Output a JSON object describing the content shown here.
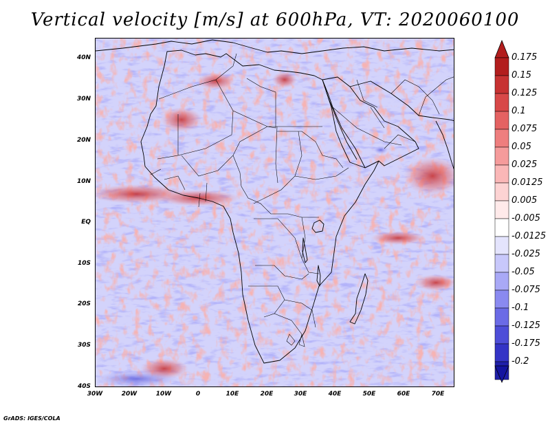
{
  "title": "Vertical velocity [m/s] at 600hPa, VT: 2020060100",
  "credit": "GrADS: IGES/COLA",
  "map": {
    "variable": "Vertical velocity",
    "units": "m/s",
    "level": "600hPa",
    "valid_time": "2020060100",
    "lon_range": [
      -30,
      75
    ],
    "lat_range": [
      -40,
      45
    ],
    "lat_ticks": [
      {
        "value": 40,
        "label": "40N"
      },
      {
        "value": 30,
        "label": "30N"
      },
      {
        "value": 20,
        "label": "20N"
      },
      {
        "value": 10,
        "label": "10N"
      },
      {
        "value": 0,
        "label": "EQ"
      },
      {
        "value": -10,
        "label": "10S"
      },
      {
        "value": -20,
        "label": "20S"
      },
      {
        "value": -30,
        "label": "30S"
      },
      {
        "value": -40,
        "label": "40S"
      }
    ],
    "lon_ticks": [
      {
        "value": -30,
        "label": "30W"
      },
      {
        "value": -20,
        "label": "20W"
      },
      {
        "value": -10,
        "label": "10W"
      },
      {
        "value": 0,
        "label": "0"
      },
      {
        "value": 10,
        "label": "10E"
      },
      {
        "value": 20,
        "label": "20E"
      },
      {
        "value": 30,
        "label": "30E"
      },
      {
        "value": 40,
        "label": "40E"
      },
      {
        "value": 50,
        "label": "50E"
      },
      {
        "value": 60,
        "label": "60E"
      },
      {
        "value": 70,
        "label": "70E"
      }
    ]
  },
  "colorbar": {
    "levels": [
      {
        "label": "0.175",
        "color": "#b21e1e"
      },
      {
        "label": "0.15",
        "color": "#c73232"
      },
      {
        "label": "0.125",
        "color": "#d84848"
      },
      {
        "label": "0.1",
        "color": "#e46262"
      },
      {
        "label": "0.075",
        "color": "#ee7e7e"
      },
      {
        "label": "0.05",
        "color": "#f59b9b"
      },
      {
        "label": "0.025",
        "color": "#fab7b7"
      },
      {
        "label": "0.0125",
        "color": "#fdd3d3"
      },
      {
        "label": "0.005",
        "color": "#ffeaea"
      },
      {
        "label": "-0.005",
        "color": "#ffffff"
      },
      {
        "label": "-0.0125",
        "color": "#e4e4fd"
      },
      {
        "label": "-0.025",
        "color": "#c8c8fb"
      },
      {
        "label": "-0.05",
        "color": "#a9a9f6"
      },
      {
        "label": "-0.075",
        "color": "#8a8af0"
      },
      {
        "label": "-0.1",
        "color": "#6b6be6"
      },
      {
        "label": "-0.125",
        "color": "#4e4ed8"
      },
      {
        "label": "-0.175",
        "color": "#3434c6"
      },
      {
        "label": "-0.2",
        "color": "#2020aa"
      }
    ],
    "bottom_color": "#1414a0"
  }
}
